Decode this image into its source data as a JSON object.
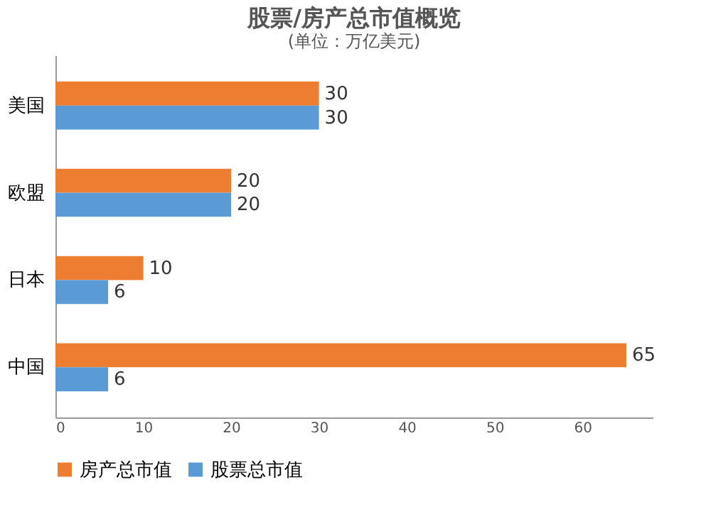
{
  "chart_data": {
    "type": "bar",
    "orientation": "horizontal",
    "title": "股票/房产总市值概览",
    "subtitle": "(单位：万亿美元)",
    "categories": [
      "美国",
      "欧盟",
      "日本",
      "中国"
    ],
    "series": [
      {
        "name": "房产总市值",
        "color": "#ed7d31",
        "values": [
          30,
          20,
          10,
          65
        ]
      },
      {
        "name": "股票总市值",
        "color": "#5b9bd5",
        "values": [
          30,
          20,
          6,
          6
        ]
      }
    ],
    "xlim": [
      0,
      68
    ],
    "xticks": [
      0,
      10,
      20,
      30,
      40,
      50,
      60
    ],
    "grid": false,
    "legend": "bottom",
    "data_labels": true
  }
}
